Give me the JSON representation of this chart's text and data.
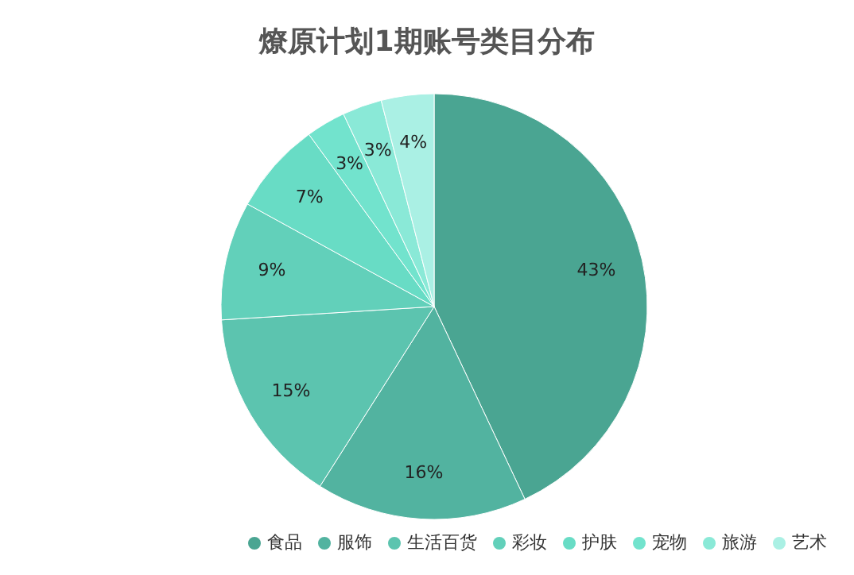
{
  "chart_data": {
    "type": "pie",
    "title": "燎原计划1期账号类目分布",
    "categories": [
      "食品",
      "服饰",
      "生活百货",
      "彩妆",
      "护肤",
      "宠物",
      "旅游",
      "艺术"
    ],
    "values": [
      43,
      16,
      15,
      9,
      7,
      3,
      3,
      4
    ],
    "value_labels": [
      "43%",
      "16%",
      "15%",
      "9%",
      "7%",
      "3%",
      "3%",
      "4%"
    ],
    "colors": [
      "#4aa592",
      "#52b3a0",
      "#5cc4af",
      "#62d0ba",
      "#68dcc5",
      "#72e3cd",
      "#8ae9d7",
      "#aaf0e4"
    ],
    "legend": "bottom right"
  }
}
